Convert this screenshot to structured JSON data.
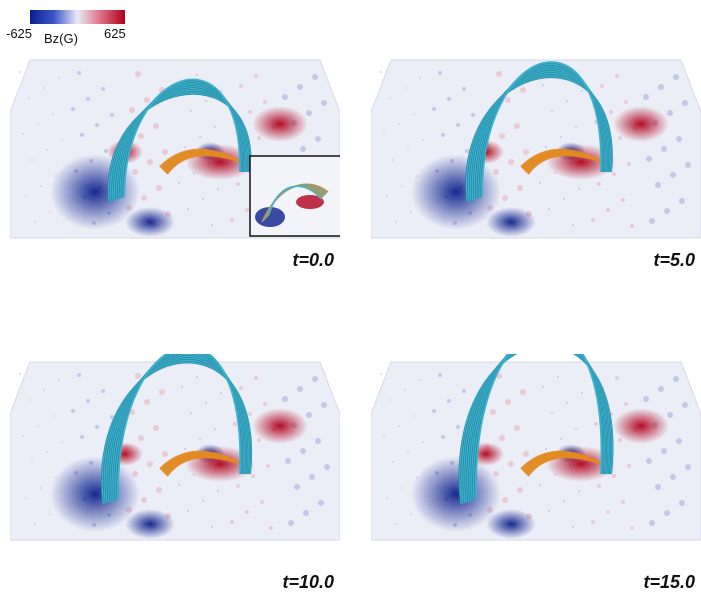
{
  "colorbar": {
    "min_label": "-625",
    "max_label": "625",
    "unit_label": "Bz(G)",
    "colors": {
      "negative": "#0b1f8c",
      "zero": "#e9ebf7",
      "positive": "#b1001a"
    }
  },
  "panels": [
    {
      "time_label": "t=0.0",
      "has_inset": true
    },
    {
      "time_label": "t=5.0",
      "has_inset": false
    },
    {
      "time_label": "t=10.0",
      "has_inset": false
    },
    {
      "time_label": "t=15.0",
      "has_inset": false
    }
  ],
  "colors": {
    "fieldline_outer": "#3fb3cf",
    "fieldline_inner": "#e28a22"
  }
}
